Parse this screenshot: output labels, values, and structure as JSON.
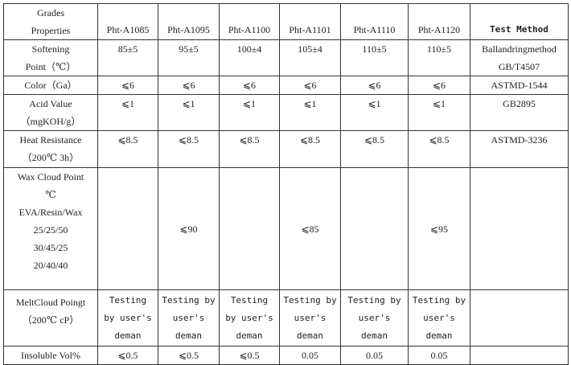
{
  "header": {
    "corner_top": "Grades",
    "corner_bottom": "Properties",
    "grades": [
      "Pht-A1085",
      "Pht-A1095",
      "Pht-A1100",
      "Pht-A1101",
      "Pht-A1110",
      "Pht-A1120"
    ],
    "method": "Test Method"
  },
  "rows": [
    {
      "label": [
        "Softening",
        "Point（℃）"
      ],
      "values": [
        "85±5",
        "95±5",
        "100±4",
        "105±4",
        "110±5",
        "110±5"
      ],
      "method": [
        "Ballandringmethod",
        "GB/T4507"
      ]
    },
    {
      "label": [
        "Color（Ga）"
      ],
      "values": [
        "⩽6",
        "⩽6",
        "⩽6",
        "⩽6",
        "⩽6",
        "⩽6"
      ],
      "method": [
        "ASTMD-1544"
      ]
    },
    {
      "label": [
        "Acid Value",
        "（mgKOH/g）"
      ],
      "values": [
        "⩽1",
        "⩽1",
        "⩽1",
        "⩽1",
        "⩽1",
        "⩽1"
      ],
      "method": [
        "GB2895"
      ]
    },
    {
      "label": [
        "Heat Resistance",
        "（200℃ 3h）"
      ],
      "values": [
        "⩽8.5",
        "⩽8.5",
        "⩽8.5",
        "⩽8.5",
        "⩽8.5",
        "⩽8.5"
      ],
      "method": [
        "ASTMD-3236"
      ]
    },
    {
      "label": [
        "Wax Cloud Point",
        "℃",
        "EVA/Resin/Wax",
        "25/25/50",
        "30/45/25",
        "20/40/40"
      ],
      "values": [
        "",
        "⩽90",
        "",
        "⩽85",
        "",
        "⩽95"
      ],
      "method": []
    },
    {
      "label": [
        "MeltCloud Poingt",
        "（200℃ cP）"
      ],
      "values": [
        "Testing by user's deman",
        "Testing by user's deman",
        "Testing by user's deman",
        "Testing by user's deman",
        "Testing by user's deman",
        "Testing by user's deman"
      ],
      "method": []
    },
    {
      "label": [
        "Insoluble Vol%"
      ],
      "values": [
        "⩽0.5",
        "⩽0.5",
        "⩽0.5",
        "0.05",
        "0.05",
        "0.05"
      ],
      "method": []
    }
  ]
}
